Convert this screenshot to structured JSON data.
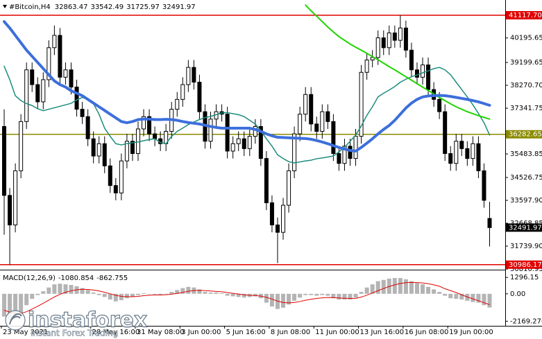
{
  "header": {
    "symbol": "#Bitcoin,H4"
  },
  "watermark": {
    "brand": "instaforex",
    "tagline": "Instant Forex Trading"
  },
  "chart_data": [
    {
      "type": "candlestick",
      "categories": [
        "23 May 2021",
        null,
        null,
        null,
        null,
        null,
        null,
        null,
        null,
        null,
        null,
        null,
        null,
        null,
        null,
        null,
        "28 May 16:00",
        null,
        null,
        null,
        null,
        null,
        null,
        null,
        "31 May 08:00",
        null,
        null,
        null,
        null,
        null,
        null,
        null,
        "3 Jun 00:00",
        null,
        null,
        null,
        null,
        null,
        null,
        null,
        "5 Jun 16:00",
        null,
        null,
        null,
        null,
        null,
        null,
        null,
        "8 Jun 08:00",
        null,
        null,
        null,
        null,
        null,
        null,
        null,
        "11 Jun 00:00",
        null,
        null,
        null,
        null,
        null,
        null,
        null,
        "13 Jun 16:00",
        null,
        null,
        null,
        null,
        null,
        null,
        null,
        "16 Jun 08:00",
        null,
        null,
        null,
        null,
        null,
        null,
        null,
        "19 Jun 00:00",
        null,
        null,
        null,
        null,
        null,
        null,
        null
      ],
      "open": [
        36600,
        33800,
        32600,
        34800,
        36800,
        38900,
        38300,
        37600,
        38500,
        39800,
        40300,
        38600,
        38900,
        38200,
        37300,
        37000,
        36100,
        35400,
        35900,
        35000,
        34200,
        33900,
        35200,
        36000,
        35500,
        36500,
        37000,
        36300,
        36100,
        35900,
        36400,
        37300,
        37700,
        38300,
        39000,
        38400,
        37200,
        36000,
        36900,
        37200,
        37100,
        35600,
        35900,
        36100,
        35700,
        36200,
        36600,
        35300,
        33500,
        32600,
        32300,
        33400,
        34800,
        36300,
        37100,
        37900,
        36700,
        36400,
        37200,
        36800,
        35500,
        35100,
        35800,
        35300,
        36200,
        38800,
        39300,
        39400,
        40200,
        39800,
        40400,
        40100,
        40600,
        39700,
        38900,
        38600,
        39100,
        38100,
        37700,
        37200,
        35500,
        35100,
        36000,
        35700,
        35300,
        35900,
        34800,
        32863.47
      ],
      "high": [
        37300,
        34100,
        35100,
        37100,
        39200,
        39200,
        38600,
        38800,
        40100,
        40700,
        40600,
        39200,
        39200,
        38500,
        37600,
        37300,
        36400,
        36200,
        36200,
        35300,
        34500,
        35500,
        36300,
        36300,
        36800,
        37300,
        37300,
        36600,
        36400,
        36700,
        37600,
        38000,
        38600,
        39300,
        39300,
        38700,
        37500,
        37200,
        37500,
        37500,
        37400,
        36200,
        36400,
        36400,
        36500,
        36900,
        36900,
        35600,
        33800,
        32900,
        33700,
        35100,
        36600,
        37400,
        38200,
        38200,
        37000,
        37500,
        37500,
        37100,
        35800,
        36100,
        36100,
        36500,
        39100,
        39600,
        39700,
        40500,
        40500,
        40700,
        40700,
        41117.7,
        40900,
        40000,
        39200,
        39400,
        39400,
        38400,
        38000,
        37500,
        35800,
        36300,
        36300,
        36000,
        36200,
        36200,
        35100,
        33542.49
      ],
      "low": [
        32200,
        30986.17,
        32300,
        34500,
        36500,
        38000,
        37300,
        37300,
        38200,
        39500,
        38300,
        38300,
        37900,
        37000,
        36700,
        35800,
        35100,
        35100,
        34700,
        33900,
        33600,
        33600,
        34900,
        35200,
        35200,
        36200,
        36000,
        35800,
        35600,
        35600,
        36100,
        37000,
        37400,
        38000,
        38100,
        36900,
        35700,
        35700,
        36600,
        36800,
        35300,
        35300,
        35600,
        35400,
        35400,
        35900,
        35000,
        33200,
        32300,
        31050,
        32000,
        33100,
        34500,
        36000,
        36800,
        36400,
        36100,
        36100,
        36500,
        35200,
        34800,
        34800,
        35000,
        35000,
        35900,
        38500,
        39000,
        39100,
        39500,
        39500,
        39800,
        39800,
        39400,
        38600,
        38300,
        38300,
        37800,
        37400,
        36900,
        35200,
        34800,
        34800,
        35400,
        35000,
        35000,
        34500,
        33300,
        31725.97
      ],
      "close": [
        33800,
        32600,
        34800,
        36800,
        38900,
        38300,
        37600,
        38500,
        39800,
        40300,
        38600,
        38900,
        38200,
        37300,
        37000,
        36100,
        35400,
        35900,
        35000,
        34200,
        33900,
        35200,
        36000,
        35500,
        36500,
        37000,
        36300,
        36100,
        35900,
        36400,
        37300,
        37700,
        38300,
        39000,
        38400,
        37200,
        36000,
        36900,
        37200,
        37100,
        35600,
        35900,
        36100,
        35700,
        36200,
        36600,
        35300,
        33500,
        32600,
        32300,
        33400,
        34800,
        36300,
        37100,
        37900,
        36700,
        36400,
        37200,
        36800,
        35500,
        35100,
        35800,
        35300,
        36200,
        38800,
        39300,
        39400,
        40200,
        39800,
        40400,
        40100,
        40600,
        39700,
        38900,
        38600,
        39100,
        38100,
        37700,
        37200,
        35500,
        35100,
        36000,
        35700,
        35300,
        35900,
        34800,
        33600,
        32491.97
      ],
      "up_color": "#ffffff",
      "down_color": "#000000",
      "outline_color": "#000000",
      "series": [
        {
          "color": "#3c6fdc",
          "values": [
            40860,
            40600,
            40300,
            40000,
            39700,
            39450,
            39200,
            38950,
            38700,
            38450,
            38300,
            38200,
            38050,
            37950,
            37850,
            37700,
            37550,
            37400,
            37250,
            37100,
            36950,
            36800,
            36750,
            36800,
            36880,
            36900,
            36900,
            36880,
            36880,
            36890,
            36880,
            36850,
            36800,
            36760,
            36730,
            36700,
            36650,
            36600,
            36560,
            36530,
            36530,
            36530,
            36530,
            36530,
            36530,
            36480,
            36400,
            36300,
            36220,
            36160,
            36150,
            36140,
            36130,
            36120,
            36110,
            36080,
            36030,
            35970,
            35900,
            35820,
            35750,
            35680,
            35630,
            35600,
            35750,
            35920,
            36100,
            36300,
            36480,
            36640,
            36850,
            37100,
            37350,
            37550,
            37700,
            37800,
            37840,
            37850,
            37860,
            37850,
            37820,
            37780,
            37740,
            37700,
            37650,
            37600,
            37530,
            37460
          ]
        },
        {
          "color": "#1fd400",
          "values": [
            null,
            null,
            null,
            null,
            null,
            null,
            null,
            null,
            null,
            null,
            null,
            null,
            null,
            null,
            null,
            null,
            null,
            null,
            null,
            null,
            null,
            null,
            null,
            null,
            null,
            null,
            null,
            null,
            null,
            null,
            null,
            null,
            null,
            null,
            null,
            null,
            null,
            null,
            null,
            null,
            null,
            null,
            null,
            null,
            null,
            null,
            null,
            null,
            null,
            null,
            null,
            null,
            null,
            null,
            41530,
            41300,
            41080,
            40860,
            40640,
            40440,
            40250,
            40100,
            39950,
            39820,
            39700,
            39570,
            39440,
            39310,
            39170,
            39030,
            38900,
            38760,
            38620,
            38480,
            38340,
            38200,
            38060,
            37920,
            37780,
            37650,
            37520,
            37400,
            37300,
            37200,
            37120,
            37040,
            36970,
            36900
          ]
        },
        {
          "color": "#1b8c7c",
          "values": [
            39050,
            38500,
            37850,
            37650,
            37530,
            37450,
            37320,
            37240,
            37300,
            37360,
            37420,
            37480,
            37540,
            37680,
            37780,
            37700,
            37530,
            37100,
            36530,
            36200,
            35900,
            35850,
            35900,
            35940,
            35970,
            36020,
            36070,
            36100,
            35950,
            35900,
            36200,
            36400,
            36530,
            36680,
            36780,
            36880,
            36960,
            37010,
            37080,
            37150,
            37160,
            37120,
            37080,
            37000,
            36850,
            36700,
            36420,
            36100,
            35800,
            35450,
            35300,
            35170,
            35120,
            35160,
            35200,
            35230,
            35290,
            35320,
            35360,
            35400,
            35570,
            35760,
            36000,
            36250,
            36620,
            37050,
            37400,
            37800,
            37950,
            38080,
            38220,
            38400,
            38520,
            38620,
            38690,
            38780,
            38860,
            38950,
            39000,
            38900,
            38700,
            38400,
            38100,
            37800,
            37480,
            37130,
            36750,
            36250
          ]
        }
      ],
      "hlines": [
        {
          "value": 41117.7,
          "label": "41117.70",
          "color": "#e00000"
        },
        {
          "value": 36282.65,
          "color": "#8b8b00"
        },
        {
          "value": 30986.17,
          "color": "#e00000"
        }
      ],
      "current_price_color": "#000000",
      "ylim": [
        30810.95,
        41737
      ],
      "yticks": [
        40195.65,
        39199.65,
        {
          "value": 38270.7,
          "label": "38270.70"
        },
        37341.75,
        35483.85,
        34526.75,
        {
          "value": 33597.9,
          "label": "33597.90"
        },
        32668.85,
        {
          "value": 31739.9,
          "label": "31739.90"
        },
        30810.95
      ]
    },
    {
      "type": "macd",
      "title": "MACD(12,26,9)",
      "histogram": [
        -1800,
        -2100,
        -2000,
        -1500,
        -900,
        -400,
        -100,
        200,
        500,
        750,
        800,
        750,
        700,
        600,
        450,
        300,
        100,
        -100,
        -250,
        -450,
        -600,
        -500,
        -350,
        -250,
        -100,
        50,
        0,
        -50,
        -100,
        0,
        150,
        300,
        450,
        550,
        500,
        350,
        150,
        100,
        100,
        50,
        -150,
        -200,
        -250,
        -300,
        -250,
        -200,
        -350,
        -700,
        -1000,
        -1200,
        -1100,
        -850,
        -550,
        -300,
        -100,
        -100,
        -150,
        -100,
        -150,
        -350,
        -450,
        -450,
        -450,
        -300,
        150,
        500,
        750,
        1000,
        1100,
        1200,
        1250,
        1250,
        1150,
        1000,
        850,
        750,
        550,
        350,
        150,
        -150,
        -350,
        -400,
        -450,
        -550,
        -650,
        -700,
        -900,
        -1080.854
      ],
      "signal": [
        -1300,
        -1450,
        -1560,
        -1550,
        -1420,
        -1210,
        -990,
        -750,
        -500,
        -250,
        -40,
        120,
        240,
        320,
        360,
        350,
        300,
        220,
        120,
        0,
        -120,
        -200,
        -230,
        -230,
        -200,
        -150,
        -110,
        -90,
        -90,
        -70,
        -30,
        30,
        110,
        200,
        260,
        280,
        250,
        220,
        190,
        160,
        100,
        40,
        -20,
        -80,
        -120,
        -140,
        -180,
        -280,
        -420,
        -580,
        -690,
        -720,
        -690,
        -610,
        -510,
        -430,
        -370,
        -320,
        -290,
        -300,
        -330,
        -350,
        -370,
        -360,
        -260,
        -110,
        60,
        250,
        420,
        580,
        710,
        820,
        880,
        900,
        890,
        860,
        800,
        710,
        600,
        400,
        250,
        100,
        -80,
        -250,
        -400,
        -550,
        -700,
        -862.755
      ],
      "histogram_color": "#b4b4b4",
      "signal_color": "#e00000",
      "ylim": [
        -2535,
        1746
      ],
      "yticks": [
        1296.15,
        {
          "value": 0,
          "label": "0.00"
        },
        -2169.276
      ]
    }
  ]
}
